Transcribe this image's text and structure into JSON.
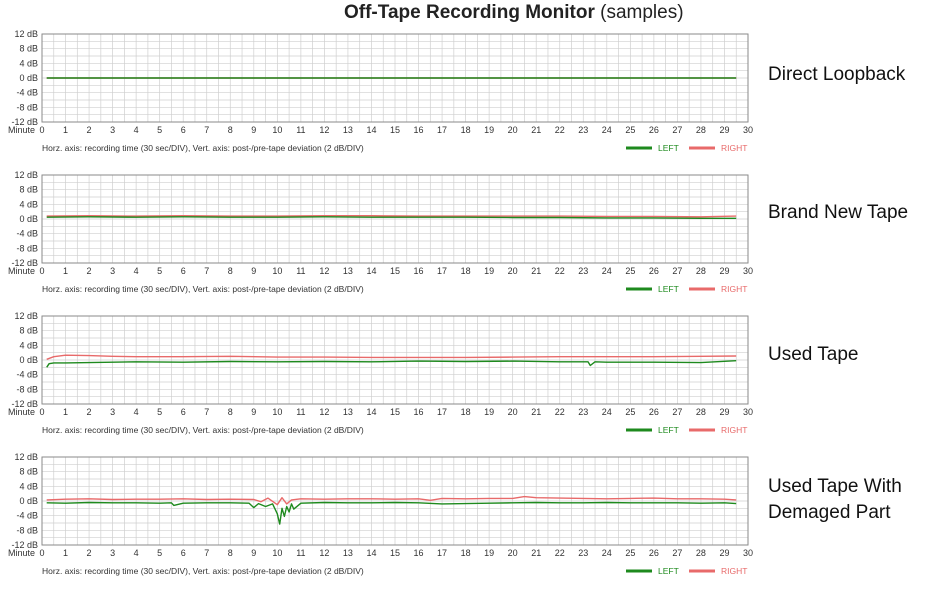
{
  "title": {
    "bold": "Off-Tape Recording Monitor",
    "normal": " (samples)"
  },
  "colors": {
    "left": "#1e8a1e",
    "right": "#e86a6a",
    "grid": "#cfcfcf",
    "frame": "#8a8a8a"
  },
  "panel_labels": [
    [
      "Direct Loopback"
    ],
    [
      "Brand New Tape"
    ],
    [
      "Used Tape"
    ],
    [
      "Used Tape With",
      "Demaged Part"
    ]
  ],
  "chart_data": [
    {
      "type": "line",
      "title": "Direct Loopback",
      "xlabel": "Minute",
      "footer": "Horz. axis: recording time (30 sec/DIV),   Vert. axis: post-/pre-tape deviation (2 dB/DIV)",
      "xlim": [
        0,
        30
      ],
      "ylim": [
        -12,
        12
      ],
      "grid": true,
      "legend": "bottom-right",
      "y_ticks": [
        "12 dB",
        "8 dB",
        "4 dB",
        "0 dB",
        "-4 dB",
        "-8 dB",
        "-12 dB"
      ],
      "x_ticks": [
        0,
        1,
        2,
        3,
        4,
        5,
        6,
        7,
        8,
        9,
        10,
        11,
        12,
        13,
        14,
        15,
        16,
        17,
        18,
        19,
        20,
        21,
        22,
        23,
        24,
        25,
        26,
        27,
        28,
        29,
        30
      ],
      "series": [
        {
          "name": "LEFT",
          "x": [
            0.2,
            5,
            10,
            15,
            20,
            25,
            29.5
          ],
          "y": [
            0,
            0,
            0,
            0,
            0,
            0,
            0
          ]
        },
        {
          "name": "RIGHT",
          "x": [
            0.2,
            5,
            10,
            15,
            20,
            25,
            29.5
          ],
          "y": [
            0,
            0,
            0,
            0,
            0,
            0,
            0
          ]
        }
      ]
    },
    {
      "type": "line",
      "title": "Brand New Tape",
      "xlabel": "Minute",
      "footer": "Horz. axis: recording time (30 sec/DIV),   Vert. axis: post-/pre-tape deviation (2 dB/DIV)",
      "xlim": [
        0,
        30
      ],
      "ylim": [
        -12,
        12
      ],
      "grid": true,
      "legend": "bottom-right",
      "y_ticks": [
        "12 dB",
        "8 dB",
        "4 dB",
        "0 dB",
        "-4 dB",
        "-8 dB",
        "-12 dB"
      ],
      "x_ticks": [
        0,
        1,
        2,
        3,
        4,
        5,
        6,
        7,
        8,
        9,
        10,
        11,
        12,
        13,
        14,
        15,
        16,
        17,
        18,
        19,
        20,
        21,
        22,
        23,
        24,
        25,
        26,
        27,
        28,
        29,
        30
      ],
      "series": [
        {
          "name": "LEFT",
          "x": [
            0.2,
            2,
            4,
            6,
            8,
            10,
            12,
            14,
            16,
            18,
            20,
            22,
            24,
            26,
            28,
            29.5
          ],
          "y": [
            0.5,
            0.6,
            0.5,
            0.6,
            0.5,
            0.5,
            0.6,
            0.5,
            0.5,
            0.5,
            0.4,
            0.4,
            0.3,
            0.3,
            0.2,
            0.2
          ]
        },
        {
          "name": "RIGHT",
          "x": [
            0.2,
            2,
            4,
            6,
            8,
            10,
            12,
            14,
            16,
            18,
            20,
            22,
            24,
            26,
            28,
            29.5
          ],
          "y": [
            0.8,
            0.9,
            0.8,
            0.9,
            0.8,
            0.8,
            0.9,
            0.9,
            0.8,
            0.8,
            0.8,
            0.8,
            0.7,
            0.7,
            0.6,
            0.8
          ]
        }
      ]
    },
    {
      "type": "line",
      "title": "Used Tape",
      "xlabel": "Minute",
      "footer": "Horz. axis: recording time (30 sec/DIV),   Vert. axis: post-/pre-tape deviation (2 dB/DIV)",
      "xlim": [
        0,
        30
      ],
      "ylim": [
        -12,
        12
      ],
      "grid": true,
      "legend": "bottom-right",
      "y_ticks": [
        "12 dB",
        "8 dB",
        "4 dB",
        "0 dB",
        "-4 dB",
        "-8 dB",
        "-12 dB"
      ],
      "x_ticks": [
        0,
        1,
        2,
        3,
        4,
        5,
        6,
        7,
        8,
        9,
        10,
        11,
        12,
        13,
        14,
        15,
        16,
        17,
        18,
        19,
        20,
        21,
        22,
        23,
        24,
        25,
        26,
        27,
        28,
        29,
        30
      ],
      "series": [
        {
          "name": "LEFT",
          "x": [
            0.2,
            0.3,
            0.5,
            1,
            2,
            3,
            4,
            6,
            8,
            10,
            12,
            14,
            16,
            18,
            20,
            22,
            23.2,
            23.3,
            23.5,
            24,
            26,
            28,
            29.5
          ],
          "y": [
            -2,
            -1,
            -0.8,
            -0.8,
            -0.7,
            -0.6,
            -0.5,
            -0.6,
            -0.4,
            -0.5,
            -0.4,
            -0.5,
            -0.3,
            -0.4,
            -0.3,
            -0.5,
            -0.5,
            -1.5,
            -0.5,
            -0.6,
            -0.6,
            -0.7,
            -0.2
          ]
        },
        {
          "name": "RIGHT",
          "x": [
            0.2,
            0.5,
            1,
            2,
            3,
            4,
            6,
            8,
            10,
            12,
            14,
            16,
            18,
            20,
            22,
            24,
            26,
            28,
            29.5
          ],
          "y": [
            0.2,
            0.9,
            1.3,
            1.2,
            1.0,
            0.9,
            0.9,
            1.0,
            0.8,
            0.8,
            0.7,
            0.7,
            0.7,
            0.8,
            0.9,
            0.9,
            0.9,
            1.0,
            1.1
          ]
        }
      ]
    },
    {
      "type": "line",
      "title": "Used Tape With Demaged Part",
      "xlabel": "Minute",
      "footer": "Horz. axis: recording time (30 sec/DIV),   Vert. axis: post-/pre-tape deviation (2 dB/DIV)",
      "xlim": [
        0,
        30
      ],
      "ylim": [
        -12,
        12
      ],
      "grid": true,
      "legend": "bottom-right",
      "y_ticks": [
        "12 dB",
        "8 dB",
        "4 dB",
        "0 dB",
        "-4 dB",
        "-8 dB",
        "-12 dB"
      ],
      "x_ticks": [
        0,
        1,
        2,
        3,
        4,
        5,
        6,
        7,
        8,
        9,
        10,
        11,
        12,
        13,
        14,
        15,
        16,
        17,
        18,
        19,
        20,
        21,
        22,
        23,
        24,
        25,
        26,
        27,
        28,
        29,
        30
      ],
      "series": [
        {
          "name": "LEFT",
          "x": [
            0.2,
            1,
            2,
            3,
            4,
            5,
            5.5,
            5.6,
            6,
            7,
            8,
            8.8,
            9.0,
            9.2,
            9.5,
            9.8,
            10.0,
            10.1,
            10.2,
            10.3,
            10.4,
            10.5,
            10.6,
            10.7,
            11,
            12,
            13,
            14,
            15,
            16,
            17,
            18,
            19,
            20,
            21,
            22,
            23,
            24,
            25,
            26,
            27,
            28,
            29,
            29.5
          ],
          "y": [
            -0.5,
            -0.6,
            -0.4,
            -0.5,
            -0.5,
            -0.6,
            -0.5,
            -1.2,
            -0.6,
            -0.5,
            -0.5,
            -0.6,
            -1.8,
            -0.7,
            -1.5,
            -0.8,
            -3.5,
            -6.3,
            -2.0,
            -4.2,
            -1.5,
            -3.0,
            -0.8,
            -2.2,
            -0.6,
            -0.4,
            -0.5,
            -0.5,
            -0.4,
            -0.5,
            -0.8,
            -0.7,
            -0.6,
            -0.5,
            -0.4,
            -0.5,
            -0.5,
            -0.4,
            -0.5,
            -0.5,
            -0.5,
            -0.6,
            -0.5,
            -0.7
          ]
        },
        {
          "name": "RIGHT",
          "x": [
            0.2,
            1,
            2,
            3,
            4,
            5,
            6,
            7,
            8,
            9,
            9.3,
            9.6,
            10.0,
            10.2,
            10.4,
            10.6,
            11,
            12,
            13,
            14,
            15,
            16,
            16.5,
            17,
            18,
            19,
            20,
            20.5,
            21,
            22,
            23,
            24,
            25,
            26,
            27,
            28,
            29,
            29.5
          ],
          "y": [
            0.3,
            0.5,
            0.6,
            0.4,
            0.5,
            0.5,
            0.6,
            0.4,
            0.5,
            0.4,
            -0.2,
            0.8,
            -1.0,
            0.9,
            -0.8,
            0.3,
            0.6,
            0.5,
            0.6,
            0.6,
            0.5,
            0.6,
            0.2,
            0.7,
            0.6,
            0.7,
            0.7,
            1.2,
            0.9,
            0.8,
            0.7,
            0.6,
            0.7,
            0.8,
            0.6,
            0.6,
            0.5,
            0.3
          ]
        }
      ]
    }
  ]
}
